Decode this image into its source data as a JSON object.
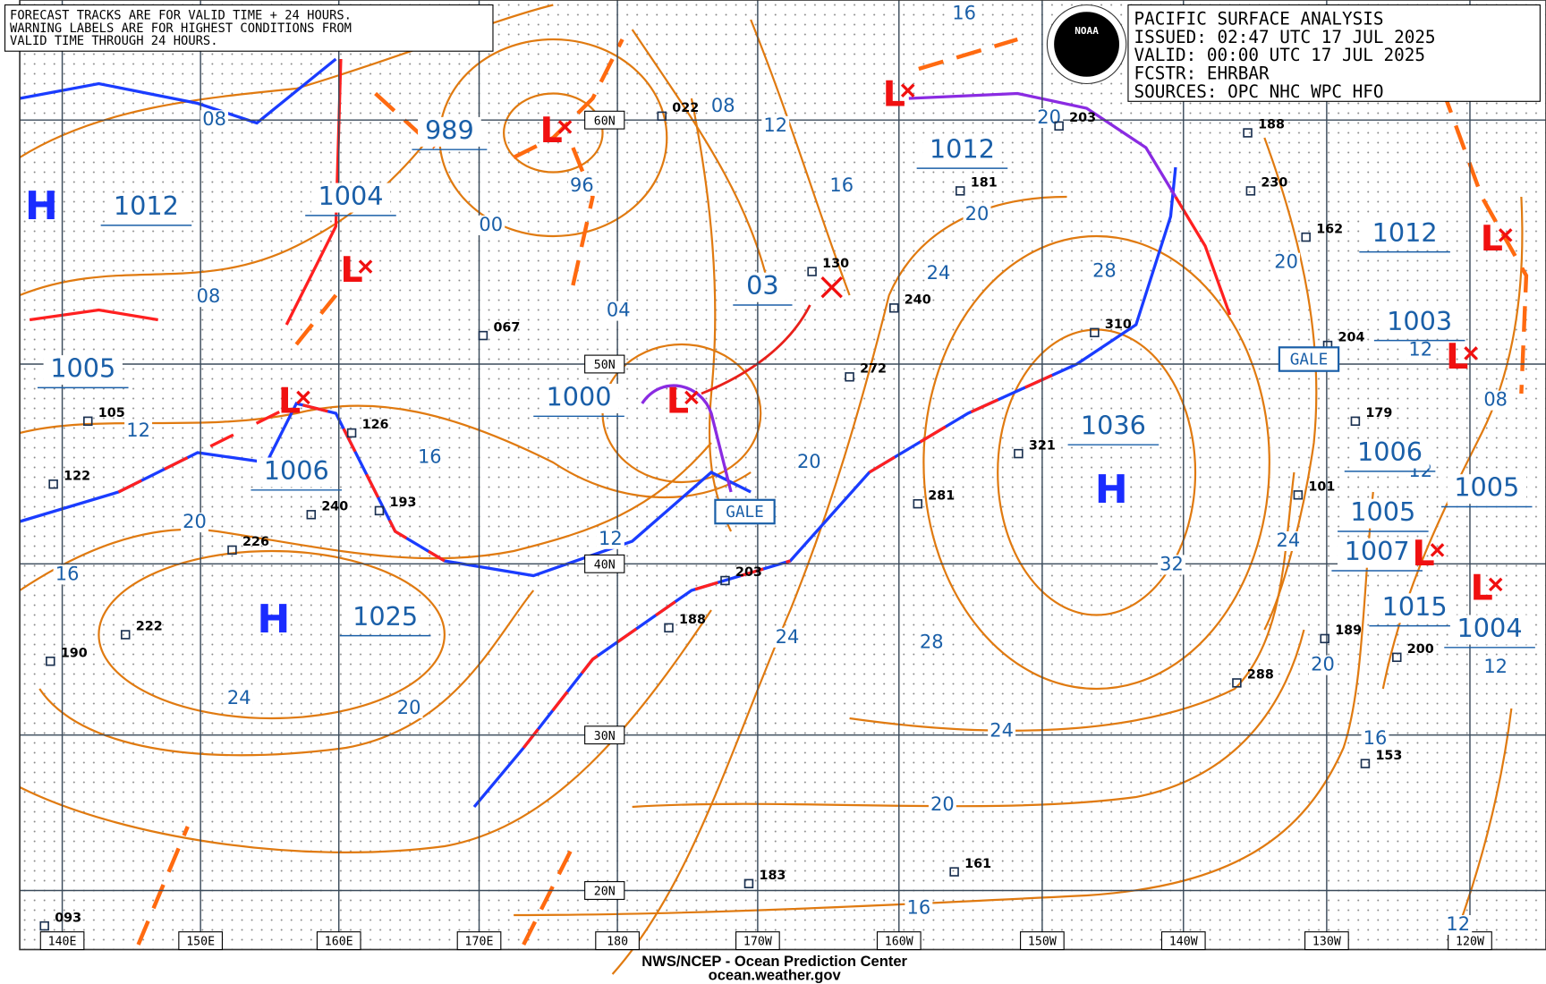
{
  "notes": [
    "FORECAST TRACKS ARE FOR VALID TIME + 24 HOURS.",
    "WARNING LABELS ARE FOR HIGHEST CONDITIONS FROM",
    "VALID TIME THROUGH 24 HOURS."
  ],
  "title_box": {
    "logo": "NOAA",
    "lines": [
      "PACIFIC SURFACE ANALYSIS",
      "ISSUED: 02:47 UTC 17 JUL 2025",
      "VALID:  00:00 UTC 17 JUL 2025",
      "FCSTR:  EHRBAR",
      "SOURCES: OPC NHC WPC HFO"
    ]
  },
  "latitudes": [
    "60N",
    "50N",
    "40N",
    "30N",
    "20N"
  ],
  "longitudes": [
    "140E",
    "150E",
    "160E",
    "170E",
    "180",
    "170W",
    "160W",
    "150W",
    "140W",
    "130W",
    "120W"
  ],
  "high_labels": [
    "H",
    "H",
    "H"
  ],
  "low_labels": [
    "L",
    "L",
    "L",
    "L",
    "L",
    "L",
    "L",
    "L",
    "L"
  ],
  "center_pressures": [
    "989",
    "1012",
    "1004",
    "1005",
    "1006",
    "1025",
    "1000",
    "03",
    "1012",
    "1036",
    "1012",
    "1003",
    "1006",
    "1005",
    "1005",
    "1007",
    "1015",
    "1004"
  ],
  "isobar_labels": [
    "08",
    "08",
    "12",
    "16",
    "20",
    "16",
    "24",
    "20",
    "00",
    "96",
    "04",
    "08",
    "12",
    "16",
    "12",
    "20",
    "24",
    "28",
    "24",
    "20",
    "16",
    "24",
    "20",
    "28",
    "32",
    "16",
    "20",
    "24",
    "20",
    "20",
    "16",
    "12",
    "08",
    "12",
    "12",
    "12"
  ],
  "warnings": [
    "GALE",
    "GALE"
  ],
  "stations": [
    "022",
    "067",
    "130",
    "240",
    "272",
    "126",
    "193",
    "240",
    "226",
    "222",
    "190",
    "122",
    "105",
    "203",
    "188",
    "183",
    "161",
    "281",
    "321",
    "310",
    "204",
    "179",
    "101",
    "189",
    "200",
    "288",
    "153",
    "093",
    "181",
    "188",
    "230",
    "162",
    "203"
  ],
  "footer": [
    "NWS/NCEP - Ocean Prediction Center",
    "ocean.weather.gov"
  ]
}
